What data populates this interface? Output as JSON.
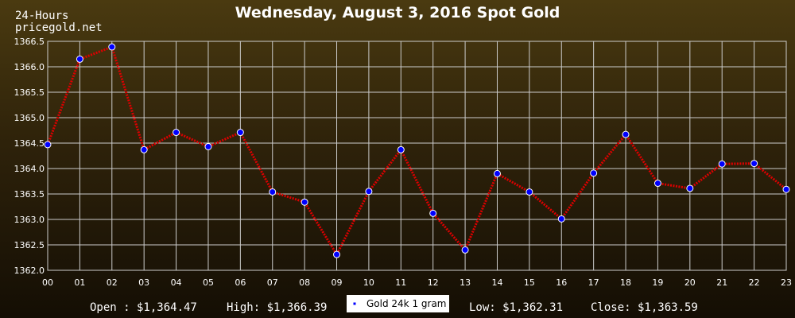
{
  "chart_data": {
    "type": "line",
    "title": "Wednesday, August 3, 2016 Spot Gold",
    "corner_label_1": "24-Hours",
    "corner_label_2": "pricegold.net",
    "categories": [
      "00",
      "01",
      "02",
      "03",
      "04",
      "05",
      "06",
      "07",
      "08",
      "09",
      "10",
      "11",
      "12",
      "13",
      "14",
      "15",
      "16",
      "17",
      "18",
      "19",
      "20",
      "21",
      "22",
      "23"
    ],
    "series": [
      {
        "name": "Gold 24k 1 gram",
        "values": [
          1364.47,
          1366.15,
          1366.39,
          1364.37,
          1364.71,
          1364.43,
          1364.71,
          1363.54,
          1363.34,
          1362.31,
          1363.55,
          1364.37,
          1363.12,
          1362.4,
          1363.9,
          1363.54,
          1363.01,
          1363.91,
          1364.67,
          1363.71,
          1363.61,
          1364.09,
          1364.1,
          1363.59
        ]
      }
    ],
    "ylim": [
      1362.0,
      1366.5
    ],
    "yticks": [
      "1362.0",
      "1362.5",
      "1363.0",
      "1363.5",
      "1364.0",
      "1364.5",
      "1365.0",
      "1365.5",
      "1366.0",
      "1366.5"
    ],
    "grid": true,
    "legend_position": "bottom-center",
    "stats": {
      "open": "Open : $1,364.47",
      "high": "High: $1,366.39",
      "low": "Low: $1,362.31",
      "close": "Close: $1,363.59"
    },
    "colors": {
      "line": "#dd0000",
      "marker_fill": "#0000ff",
      "marker_stroke": "#ffffff",
      "grid": "#cccccc",
      "plot_border": "#dddddd"
    }
  }
}
